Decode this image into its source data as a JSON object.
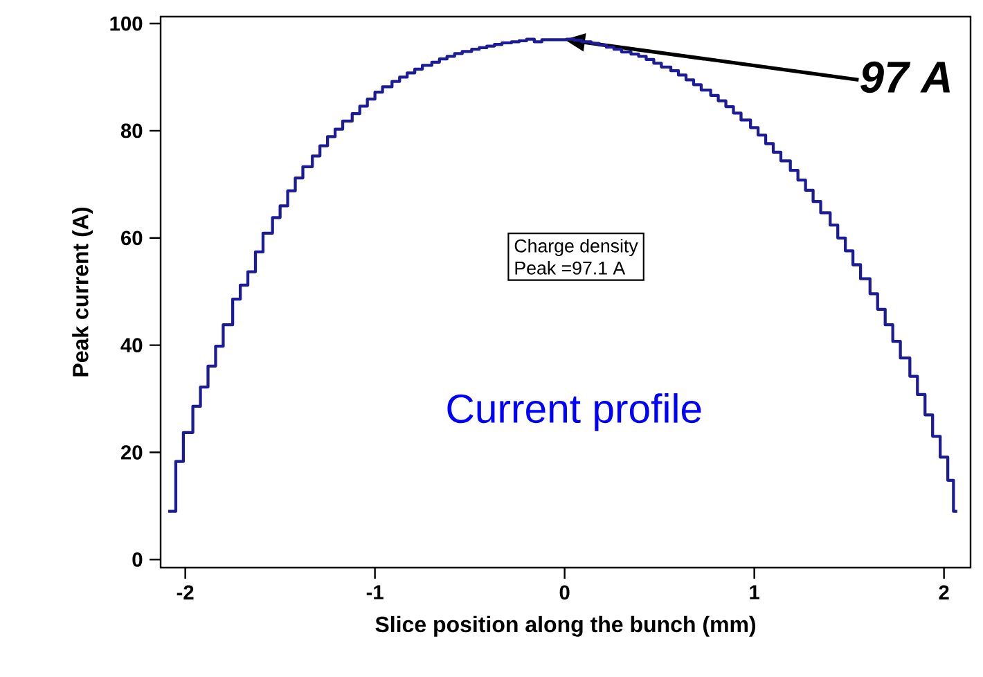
{
  "chart_data": {
    "type": "step",
    "xlabel": "Slice position along the bunch (mm)",
    "ylabel": "Peak current (A)",
    "xlim": [
      -2.13,
      2.14
    ],
    "ylim": [
      -1.5,
      101.3
    ],
    "xticks": [
      -2,
      -1,
      0,
      1,
      2
    ],
    "yticks": [
      0,
      20,
      40,
      60,
      80,
      100
    ],
    "grid": false,
    "annotations": [
      {
        "text": "97 A",
        "x": 0,
        "y": 97
      },
      "Charge density",
      "Peak =97.1 A",
      "Current profile"
    ],
    "series": [
      {
        "color": "#1c1c96",
        "x": [
          -2.09,
          -2.05,
          -2.01,
          -1.96,
          -1.92,
          -1.88,
          -1.84,
          -1.8,
          -1.75,
          -1.71,
          -1.67,
          -1.63,
          -1.59,
          -1.54,
          -1.5,
          -1.46,
          -1.42,
          -1.38,
          -1.33,
          -1.29,
          -1.25,
          -1.21,
          -1.17,
          -1.12,
          -1.08,
          -1.04,
          -1.0,
          -0.96,
          -0.91,
          -0.87,
          -0.83,
          -0.79,
          -0.75,
          -0.7,
          -0.66,
          -0.62,
          -0.58,
          -0.54,
          -0.49,
          -0.45,
          -0.41,
          -0.37,
          -0.33,
          -0.28,
          -0.24,
          -0.2,
          -0.16,
          -0.12,
          -0.07,
          -0.03,
          0.01,
          0.05,
          0.09,
          0.14,
          0.18,
          0.22,
          0.26,
          0.3,
          0.35,
          0.39,
          0.43,
          0.47,
          0.51,
          0.56,
          0.6,
          0.64,
          0.68,
          0.72,
          0.77,
          0.81,
          0.85,
          0.89,
          0.93,
          0.98,
          1.02,
          1.06,
          1.1,
          1.14,
          1.19,
          1.23,
          1.27,
          1.31,
          1.35,
          1.4,
          1.44,
          1.48,
          1.52,
          1.56,
          1.61,
          1.65,
          1.69,
          1.73,
          1.77,
          1.82,
          1.86,
          1.9,
          1.94,
          1.98,
          2.02,
          2.05,
          2.07
        ],
        "values": [
          9.0,
          18.3,
          23.7,
          28.6,
          32.2,
          36.1,
          39.8,
          43.8,
          48.6,
          51.2,
          53.7,
          57.4,
          60.9,
          63.8,
          66.0,
          68.8,
          71.2,
          73.3,
          75.3,
          77.2,
          78.9,
          80.3,
          81.8,
          83.2,
          84.6,
          85.9,
          87.2,
          88.2,
          89.2,
          90.0,
          90.8,
          91.5,
          92.2,
          92.8,
          93.4,
          93.9,
          94.4,
          94.8,
          95.2,
          95.5,
          95.8,
          96.1,
          96.4,
          96.6,
          96.8,
          97.1,
          96.6,
          97.0,
          97.0,
          97.0,
          97.1,
          96.9,
          96.6,
          96.3,
          96.0,
          95.6,
          95.2,
          94.7,
          94.3,
          93.9,
          93.3,
          92.6,
          91.9,
          91.2,
          90.4,
          89.5,
          88.6,
          87.6,
          86.6,
          85.6,
          84.5,
          83.3,
          82.0,
          80.6,
          79.2,
          77.6,
          76.0,
          74.4,
          72.6,
          70.8,
          68.9,
          66.8,
          64.7,
          62.4,
          60.0,
          57.6,
          55.0,
          52.4,
          49.6,
          46.7,
          43.8,
          40.7,
          37.6,
          34.2,
          30.8,
          27.0,
          23.0,
          19.1,
          14.8,
          9.0,
          9.0
        ]
      }
    ]
  }
}
